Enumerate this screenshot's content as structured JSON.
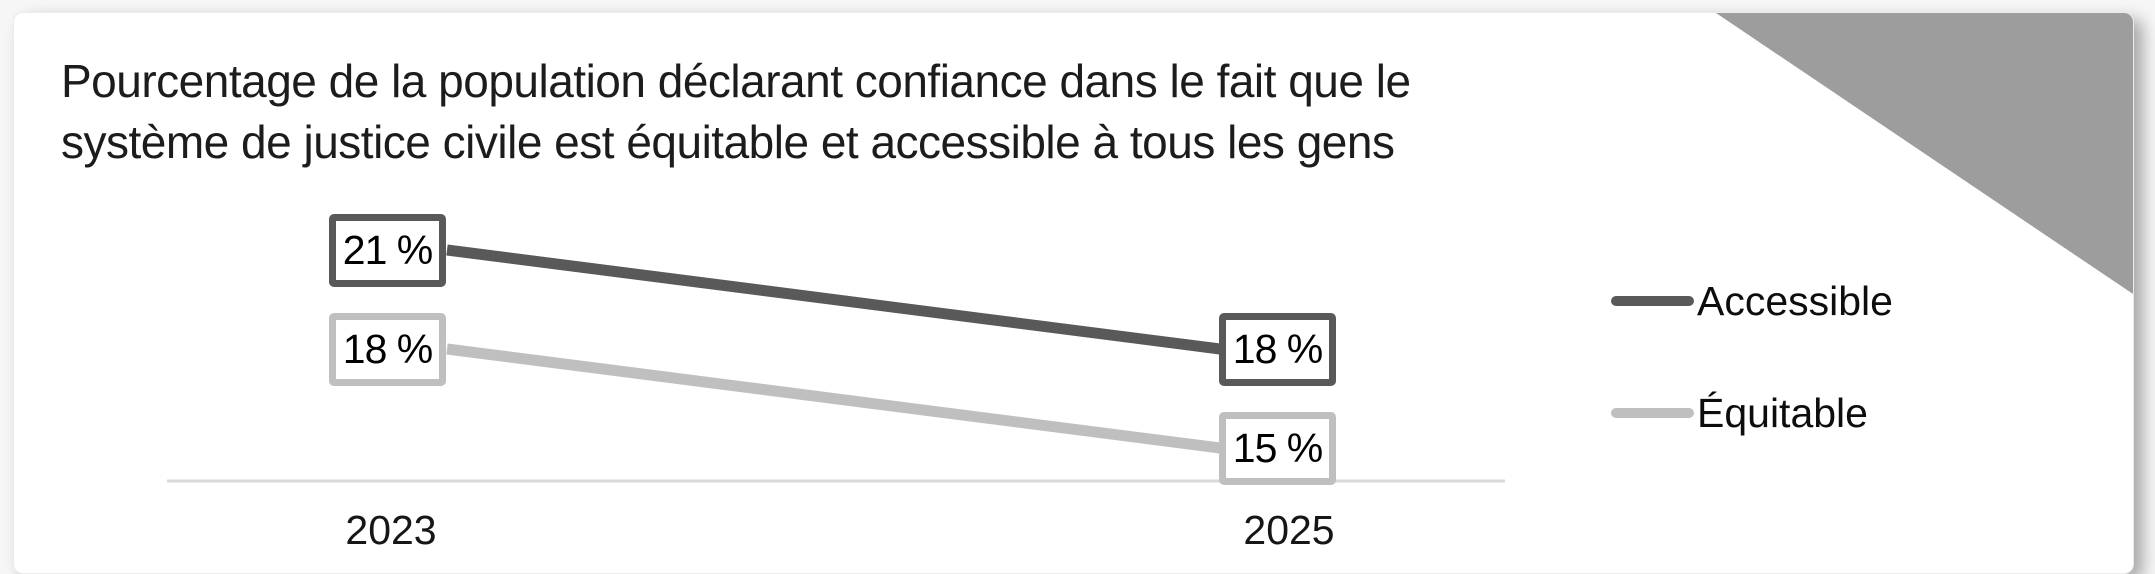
{
  "title": {
    "line1": "Pourcentage de la population déclarant confiance dans le fait que le",
    "line2": "système de justice civile est équitable et accessible à tous les gens"
  },
  "chart_data": {
    "type": "line",
    "title": "Pourcentage de la population déclarant confiance dans le fait que le système de justice civile est équitable et accessible à tous les gens",
    "x": [
      "2023",
      "2025"
    ],
    "series": [
      {
        "name": "Accessible",
        "values": [
          21,
          18
        ],
        "labels": [
          "21 %",
          "18 %"
        ],
        "color": "#595959"
      },
      {
        "name": "Équitable",
        "values": [
          18,
          15
        ],
        "labels": [
          "18 %",
          "15 %"
        ],
        "color": "#bfbfbf"
      }
    ],
    "value_suffix": " %",
    "legend_position": "right",
    "grid": "off",
    "axis": {
      "baseline_color": "#d9d9d9",
      "ylim_implied": [
        14,
        24
      ]
    }
  },
  "decor": {
    "triangle_color": "#9d9d9d",
    "card_background": "#ffffff",
    "page_background": "#f6f6f7"
  }
}
